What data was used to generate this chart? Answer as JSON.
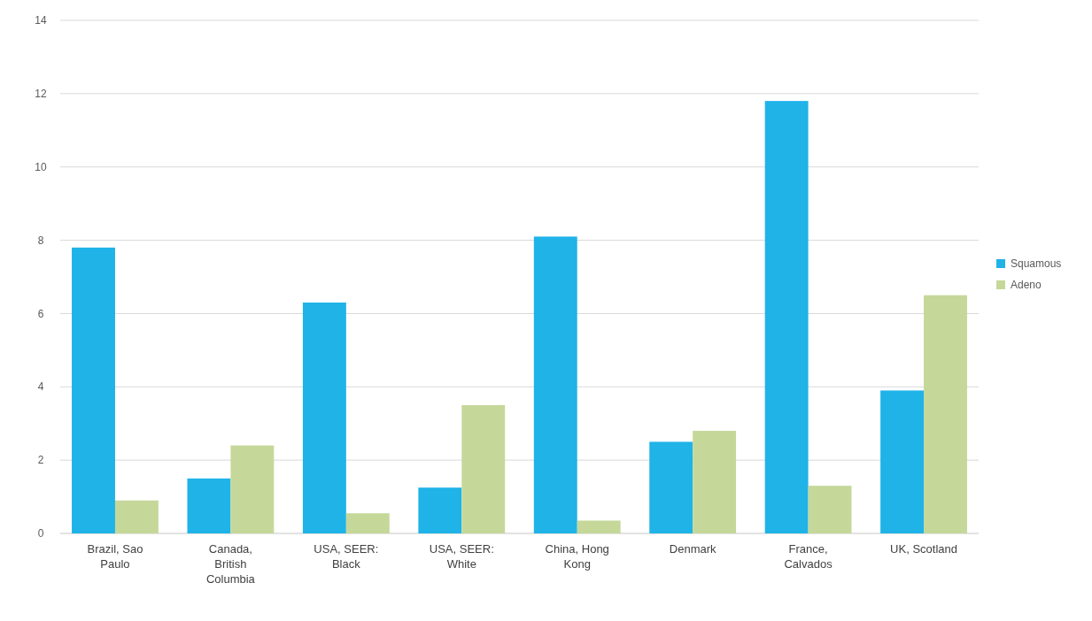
{
  "chart_data": {
    "type": "bar",
    "categories": [
      "Brazil, Sao Paulo",
      "Canada, British Columbia",
      "USA, SEER: Black",
      "USA, SEER: White",
      "China, Hong Kong",
      "Denmark",
      "France, Calvados",
      "UK, Scotland"
    ],
    "series": [
      {
        "name": "Squamous",
        "color": "#1fb3e8",
        "values": [
          7.8,
          1.5,
          6.3,
          1.25,
          8.1,
          2.5,
          11.8,
          3.9
        ]
      },
      {
        "name": "Adeno",
        "color": "#c5d89a",
        "values": [
          0.9,
          2.4,
          0.55,
          3.5,
          0.35,
          2.8,
          1.3,
          6.5
        ]
      }
    ],
    "ylim": [
      0,
      14
    ],
    "yticks": [
      0,
      2,
      4,
      6,
      8,
      10,
      12,
      14
    ],
    "grid": "y",
    "legend": "right"
  }
}
